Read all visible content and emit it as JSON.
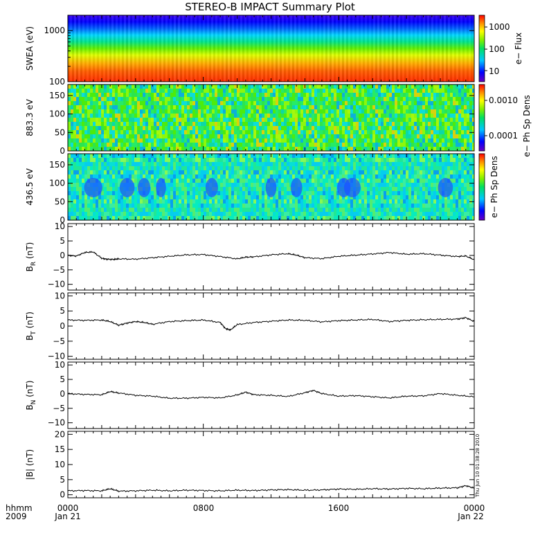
{
  "chart_data": {
    "type": "line",
    "title": "STEREO-B IMPACT Summary Plot",
    "x_axis": {
      "row1_label": "hhmm",
      "row2_label": "2009",
      "range_hours": [
        0,
        24
      ],
      "ticks": [
        {
          "hour": 0,
          "time": "0000",
          "date": "Jan 21"
        },
        {
          "hour": 8,
          "time": "0800",
          "date": ""
        },
        {
          "hour": 16,
          "time": "1600",
          "date": ""
        },
        {
          "hour": 24,
          "time": "0000",
          "date": "Jan 22"
        }
      ]
    },
    "timestamp": "Thu Jun 10 01:38:28 2010",
    "panels": [
      {
        "kind": "spectrogram",
        "ylabel": "SWEA (eV)",
        "ylim": [
          100,
          2000
        ],
        "log_y": true,
        "yticks": [
          {
            "v": 100,
            "label": "100"
          },
          {
            "v": 1000,
            "label": "1000"
          }
        ],
        "colorbar": {
          "label": "e− Flux",
          "ticks": [
            "1000",
            "100",
            "10"
          ]
        }
      },
      {
        "kind": "spectrogram",
        "ylabel": "883.3 eV",
        "ylim": [
          0,
          180
        ],
        "yticks": [
          {
            "v": 0,
            "label": "0"
          },
          {
            "v": 50,
            "label": "50"
          },
          {
            "v": 100,
            "label": "100"
          },
          {
            "v": 150,
            "label": "150"
          }
        ],
        "colorbar": {
          "label": "e− Ph Sp Dens",
          "ticks": [
            "0.0010",
            "0.0001"
          ]
        }
      },
      {
        "kind": "spectrogram",
        "ylabel": "436.5 eV",
        "ylim": [
          0,
          180
        ],
        "yticks": [
          {
            "v": 0,
            "label": "0"
          },
          {
            "v": 50,
            "label": "50"
          },
          {
            "v": 100,
            "label": "100"
          },
          {
            "v": 150,
            "label": "150"
          }
        ],
        "colorbar": {
          "label": "e− Ph Sp Dens",
          "ticks": []
        }
      },
      {
        "kind": "line",
        "ylabel_main": "B",
        "ylabel_sub": "R",
        "ylabel_unit": " (nT)",
        "ylim": [
          -12,
          11
        ],
        "yticks": [
          {
            "v": -10,
            "label": "−10"
          },
          {
            "v": -5,
            "label": "−5"
          },
          {
            "v": 0,
            "label": "0"
          },
          {
            "v": 5,
            "label": "5"
          },
          {
            "v": 10,
            "label": "10"
          }
        ],
        "series": [
          {
            "x": [
              0,
              0.5,
              1,
              1.5,
              2,
              2.3,
              2.7,
              3,
              4,
              5,
              6,
              7,
              8,
              9,
              10,
              10.5,
              11,
              12,
              13,
              13.5,
              14,
              15,
              16,
              17,
              18,
              19,
              20,
              21,
              22,
              23,
              23.5,
              24
            ],
            "y": [
              0,
              -0.2,
              1,
              1.2,
              -1,
              -1.3,
              -1.4,
              -1.2,
              -1.3,
              -0.8,
              -0.3,
              0.2,
              0.3,
              -0.4,
              -1.2,
              -0.6,
              -0.5,
              0.2,
              0.6,
              0.1,
              -0.8,
              -1.1,
              -0.3,
              0.1,
              0.5,
              1.0,
              0.4,
              0.6,
              0.1,
              -0.4,
              -0.2,
              -1.5
            ]
          }
        ]
      },
      {
        "kind": "line",
        "ylabel_main": "B",
        "ylabel_sub": "T",
        "ylabel_unit": " (nT)",
        "ylim": [
          -11,
          11
        ],
        "yticks": [
          {
            "v": -10,
            "label": "−10"
          },
          {
            "v": -5,
            "label": "−5"
          },
          {
            "v": 0,
            "label": "0"
          },
          {
            "v": 5,
            "label": "5"
          },
          {
            "v": 10,
            "label": "10"
          }
        ],
        "series": [
          {
            "x": [
              0,
              1,
              2,
              2.5,
              3,
              3.5,
              4,
              4.5,
              5,
              6,
              7,
              8,
              9,
              9.3,
              9.6,
              10,
              11,
              12,
              13,
              14,
              15,
              16,
              17,
              18,
              19,
              20,
              21,
              22,
              23,
              23.5,
              24
            ],
            "y": [
              2.0,
              1.9,
              2.0,
              1.5,
              0.3,
              1.0,
              1.5,
              1.2,
              0.6,
              1.5,
              1.8,
              2.0,
              1.2,
              -0.8,
              -1.3,
              0.5,
              1.2,
              1.6,
              2.0,
              1.9,
              1.4,
              1.8,
              2.0,
              2.2,
              1.5,
              1.9,
              2.1,
              2.2,
              2.3,
              2.8,
              1.5
            ]
          }
        ]
      },
      {
        "kind": "line",
        "ylabel_main": "B",
        "ylabel_sub": "N",
        "ylabel_unit": " (nT)",
        "ylim": [
          -12,
          11
        ],
        "yticks": [
          {
            "v": -10,
            "label": "−10"
          },
          {
            "v": -5,
            "label": "−5"
          },
          {
            "v": 0,
            "label": "0"
          },
          {
            "v": 5,
            "label": "5"
          },
          {
            "v": 10,
            "label": "10"
          }
        ],
        "series": [
          {
            "x": [
              0,
              1,
              2,
              2.5,
              3,
              4,
              5,
              6,
              7,
              8,
              9,
              10,
              10.5,
              11,
              12,
              13,
              14,
              14.5,
              15,
              16,
              17,
              18,
              19,
              20,
              21,
              22,
              23,
              24
            ],
            "y": [
              0.1,
              -0.2,
              -0.3,
              0.8,
              0.3,
              -0.5,
              -0.8,
              -1.5,
              -1.5,
              -1.2,
              -1.4,
              -0.4,
              0.6,
              -0.3,
              -0.5,
              -0.9,
              0.4,
              1.2,
              0.1,
              -0.8,
              -0.6,
              -1.0,
              -1.4,
              -0.8,
              -0.7,
              0.1,
              -0.5,
              -1.0
            ]
          }
        ]
      },
      {
        "kind": "line",
        "ylabel_main": "|B|",
        "ylabel_sub": "",
        "ylabel_unit": " (nT)",
        "ylim": [
          -1,
          21
        ],
        "yticks": [
          {
            "v": 0,
            "label": "0"
          },
          {
            "v": 5,
            "label": "5"
          },
          {
            "v": 10,
            "label": "10"
          },
          {
            "v": 15,
            "label": "15"
          },
          {
            "v": 20,
            "label": "20"
          }
        ],
        "series": [
          {
            "x": [
              0,
              1,
              2,
              2.5,
              3,
              4,
              5,
              6,
              7,
              8,
              9,
              10,
              11,
              12,
              13,
              14,
              15,
              16,
              17,
              18,
              19,
              20,
              21,
              22,
              23,
              23.5,
              24
            ],
            "y": [
              1.3,
              1.4,
              1.3,
              2.0,
              1.2,
              1.3,
              1.5,
              1.3,
              1.5,
              1.4,
              1.3,
              1.5,
              1.4,
              1.6,
              1.7,
              1.5,
              1.6,
              1.9,
              1.8,
              2.0,
              1.9,
              2.1,
              2.0,
              2.2,
              2.3,
              3.0,
              2.2
            ]
          }
        ]
      }
    ]
  }
}
